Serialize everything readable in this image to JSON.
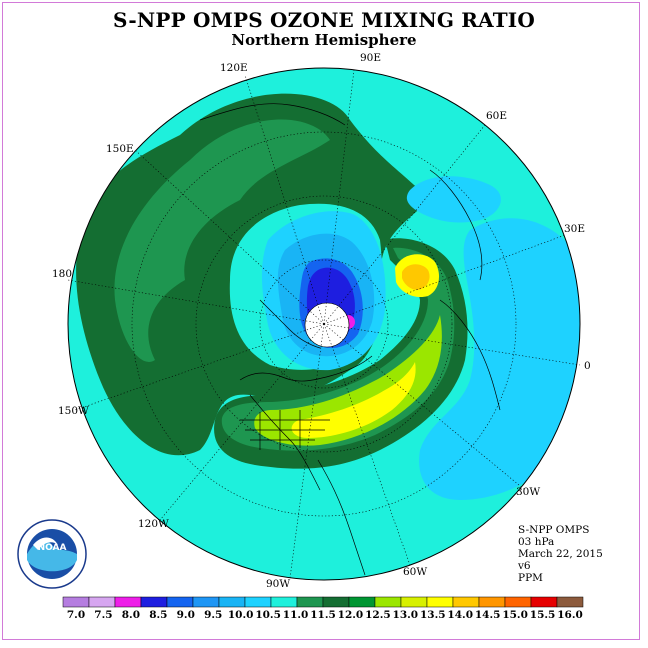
{
  "title": "S-NPP OMPS OZONE MIXING RATIO",
  "subtitle": "Northern Hemisphere",
  "longitude_labels": {
    "e90": "90E",
    "e60": "60E",
    "e30": "30E",
    "zero": "0",
    "w30": "30W",
    "w60": "60W",
    "w90": "90W",
    "w120": "120W",
    "w150": "150W",
    "lon180": "180",
    "e150": "150E",
    "e120": "120E"
  },
  "info": {
    "instrument": "S-NPP OMPS",
    "level": "03 hPa",
    "date": "March 22, 2015",
    "version": "v6",
    "units": "PPM"
  },
  "logo": {
    "text": "NOAA",
    "ring_text": "NATIONAL OCEANIC AND ATMOSPHERIC ADMINISTRATION · U.S. DEPARTMENT OF COMMERCE"
  },
  "colorbar": {
    "labels": [
      "7.0",
      "7.5",
      "8.0",
      "8.5",
      "9.0",
      "9.5",
      "10.0",
      "10.5",
      "11.0",
      "11.5",
      "12.0",
      "12.5",
      "13.0",
      "13.5",
      "14.0",
      "14.5",
      "15.0",
      "15.5",
      "16.0"
    ],
    "colors": [
      "#b57de0",
      "#d6a6f0",
      "#ee1ee8",
      "#1e1ee0",
      "#1464f0",
      "#1e96f5",
      "#19b4f5",
      "#1ed2ff",
      "#1ef0dc",
      "#1e9650",
      "#146e32",
      "#009632",
      "#9be600",
      "#d7f000",
      "#ffff00",
      "#ffc800",
      "#ff9600",
      "#ff6400",
      "#e60000",
      "#8c5a3c"
    ]
  },
  "colors": {
    "ocean_background": "#1ef0dc",
    "band_dark": "#146e32",
    "band_mid": "#1e9650",
    "low_light_blue": "#1ed2ff",
    "low_blue": "#19b4f5",
    "low_deep": "#1464f0",
    "vortex_core": "#1e1ee0",
    "high_green": "#9be600",
    "high_yellow": "#ffff00",
    "high_orange": "#ffc800",
    "frame_border": "#d27ad8"
  }
}
